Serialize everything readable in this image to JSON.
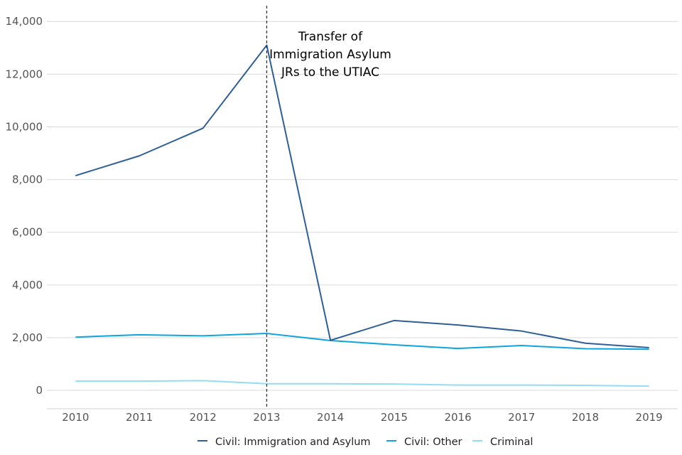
{
  "chart_data": {
    "type": "line",
    "title": "",
    "xlabel": "",
    "ylabel": "",
    "x": [
      2010,
      2011,
      2012,
      2013,
      2014,
      2015,
      2016,
      2017,
      2018,
      2019
    ],
    "x_tick_labels": [
      "2010",
      "2011",
      "2012",
      "2013",
      "2014",
      "2015",
      "2016",
      "2017",
      "2018",
      "2019"
    ],
    "y_ticks": [
      0,
      2000,
      4000,
      6000,
      8000,
      10000,
      12000,
      14000
    ],
    "y_tick_labels": [
      "0",
      "2,000",
      "4,000",
      "6,000",
      "8,000",
      "10,000",
      "12,000",
      "14,000"
    ],
    "xlim": [
      2009.55,
      2019.45
    ],
    "ylim": [
      -700,
      14600
    ],
    "grid": "horizontal",
    "legend_position": "bottom",
    "series": [
      {
        "name": "Civil: Immigration and Asylum",
        "color": "#2e5f96",
        "values": [
          8150,
          8900,
          9950,
          13100,
          1900,
          2650,
          2480,
          2250,
          1790,
          1620
        ]
      },
      {
        "name": "Civil: Other",
        "color": "#0ea5dc",
        "values": [
          2020,
          2110,
          2070,
          2160,
          1890,
          1730,
          1590,
          1700,
          1580,
          1560
        ]
      },
      {
        "name": "Criminal",
        "color": "#93dcf5",
        "values": [
          350,
          350,
          370,
          250,
          250,
          240,
          200,
          200,
          190,
          160
        ]
      }
    ],
    "annotations": [
      {
        "type": "vline",
        "x": 2013,
        "style": "dashed",
        "color": "#333333",
        "text_lines": [
          "Transfer of",
          "Immigration Asylum",
          "JRs to the UTIAC"
        ]
      }
    ]
  }
}
